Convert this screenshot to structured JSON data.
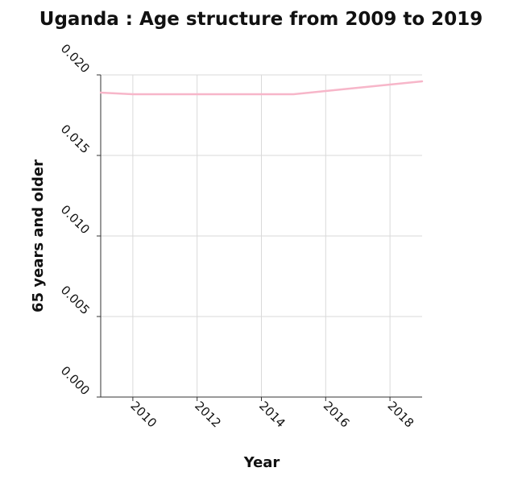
{
  "chart_data": {
    "type": "line",
    "title": "Uganda : Age structure from 2009 to 2019",
    "xlabel": "Year",
    "ylabel": "65 years and older",
    "xlim": [
      2009,
      2019
    ],
    "ylim": [
      0,
      0.02
    ],
    "x_ticks": [
      2010,
      2012,
      2014,
      2016,
      2018
    ],
    "x_tick_labels": [
      "2010",
      "2012",
      "2014",
      "2016",
      "2018"
    ],
    "y_ticks": [
      0,
      0.005,
      0.01,
      0.015,
      0.02
    ],
    "y_tick_labels": [
      "0.000",
      "0.005",
      "0.010",
      "0.015",
      "0.020"
    ],
    "grid": true,
    "legend": "none",
    "series": [
      {
        "color": "#f7b6c9",
        "x": [
          2009,
          2010,
          2011,
          2012,
          2013,
          2014,
          2015,
          2016,
          2017,
          2018,
          2019
        ],
        "values": [
          0.0189,
          0.0188,
          0.0188,
          0.0188,
          0.0188,
          0.0188,
          0.0188,
          0.019,
          0.0192,
          0.0194,
          0.0196
        ]
      }
    ]
  }
}
